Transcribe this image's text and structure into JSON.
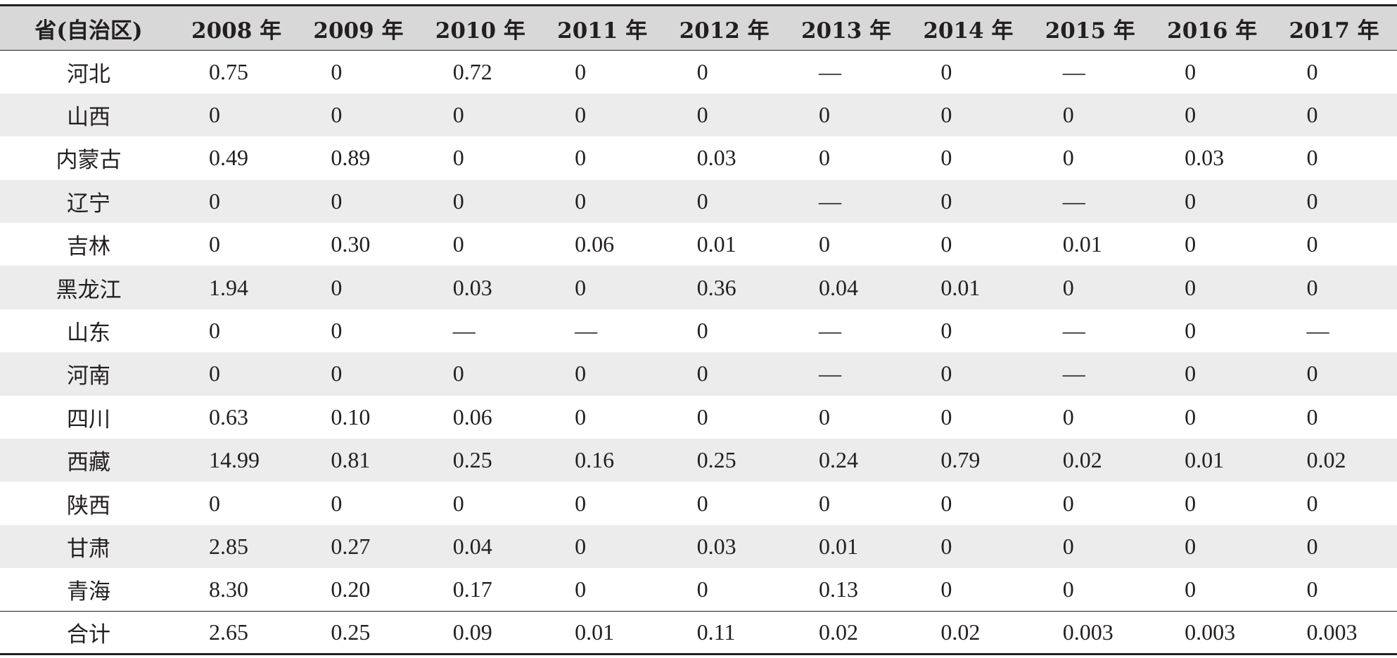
{
  "table": {
    "header": {
      "region": "省(自治区)",
      "years": [
        "2008 年",
        "2009 年",
        "2010 年",
        "2011 年",
        "2012 年",
        "2013 年",
        "2014 年",
        "2015 年",
        "2016 年",
        "2017 年"
      ]
    },
    "rows": [
      {
        "name": "河北",
        "values": [
          "0.75",
          "0",
          "0.72",
          "0",
          "0",
          "—",
          "0",
          "—",
          "0",
          "0"
        ]
      },
      {
        "name": "山西",
        "values": [
          "0",
          "0",
          "0",
          "0",
          "0",
          "0",
          "0",
          "0",
          "0",
          "0"
        ]
      },
      {
        "name": "内蒙古",
        "values": [
          "0.49",
          "0.89",
          "0",
          "0",
          "0.03",
          "0",
          "0",
          "0",
          "0.03",
          "0"
        ]
      },
      {
        "name": "辽宁",
        "values": [
          "0",
          "0",
          "0",
          "0",
          "0",
          "—",
          "0",
          "—",
          "0",
          "0"
        ]
      },
      {
        "name": "吉林",
        "values": [
          "0",
          "0.30",
          "0",
          "0.06",
          "0.01",
          "0",
          "0",
          "0.01",
          "0",
          "0"
        ]
      },
      {
        "name": "黑龙江",
        "values": [
          "1.94",
          "0",
          "0.03",
          "0",
          "0.36",
          "0.04",
          "0.01",
          "0",
          "0",
          "0"
        ]
      },
      {
        "name": "山东",
        "values": [
          "0",
          "0",
          "—",
          "—",
          "0",
          "—",
          "0",
          "—",
          "0",
          "—"
        ]
      },
      {
        "name": "河南",
        "values": [
          "0",
          "0",
          "0",
          "0",
          "0",
          "—",
          "0",
          "—",
          "0",
          "0"
        ]
      },
      {
        "name": "四川",
        "values": [
          "0.63",
          "0.10",
          "0.06",
          "0",
          "0",
          "0",
          "0",
          "0",
          "0",
          "0"
        ]
      },
      {
        "name": "西藏",
        "values": [
          "14.99",
          "0.81",
          "0.25",
          "0.16",
          "0.25",
          "0.24",
          "0.79",
          "0.02",
          "0.01",
          "0.02"
        ]
      },
      {
        "name": "陕西",
        "values": [
          "0",
          "0",
          "0",
          "0",
          "0",
          "0",
          "0",
          "0",
          "0",
          "0"
        ]
      },
      {
        "name": "甘肃",
        "values": [
          "2.85",
          "0.27",
          "0.04",
          "0",
          "0.03",
          "0.01",
          "0",
          "0",
          "0",
          "0"
        ]
      },
      {
        "name": "青海",
        "values": [
          "8.30",
          "0.20",
          "0.17",
          "0",
          "0",
          "0.13",
          "0",
          "0",
          "0",
          "0"
        ]
      }
    ],
    "total": {
      "name": "合计",
      "values": [
        "2.65",
        "0.25",
        "0.09",
        "0.01",
        "0.11",
        "0.02",
        "0.02",
        "0.003",
        "0.003",
        "0.003"
      ]
    }
  }
}
